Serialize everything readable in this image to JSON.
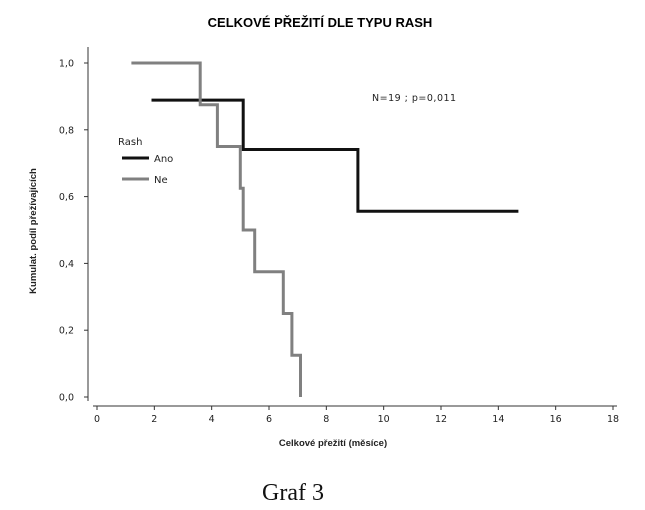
{
  "chart_data": {
    "type": "line",
    "step": true,
    "title": "CELKOVÉ PŘEŽITÍ DLE TYPU RASH",
    "xlabel": "Celkové přežití (měsíce)",
    "ylabel": "Kumulat. podíl přežívajících",
    "xlim": [
      0,
      18
    ],
    "ylim": [
      0,
      1
    ],
    "x_ticks": [
      0,
      2,
      4,
      6,
      8,
      10,
      12,
      14,
      16,
      18
    ],
    "y_ticks": [
      0.0,
      0.2,
      0.4,
      0.6,
      0.8,
      1.0
    ],
    "y_tick_labels": [
      "0,0",
      "0,2",
      "0,4",
      "0,6",
      "0,8",
      "1,0"
    ],
    "annotation": "N=19 ; p=0,011",
    "legend": {
      "title": "Rash",
      "placement": "left"
    },
    "series": [
      {
        "name": "Ano",
        "color": "#111111",
        "x": [
          1.9,
          5.1,
          5.1,
          9.1,
          9.1,
          14.7
        ],
        "y": [
          0.889,
          0.889,
          0.741,
          0.741,
          0.556,
          0.556
        ]
      },
      {
        "name": "Ne",
        "color": "#808080",
        "x": [
          1.2,
          3.6,
          3.6,
          4.2,
          4.2,
          5.0,
          5.0,
          5.1,
          5.1,
          5.5,
          5.5,
          6.5,
          6.5,
          6.8,
          6.8,
          7.1,
          7.1
        ],
        "y": [
          1.0,
          1.0,
          0.875,
          0.875,
          0.75,
          0.75,
          0.625,
          0.625,
          0.5,
          0.5,
          0.375,
          0.375,
          0.25,
          0.25,
          0.125,
          0.125,
          0.0
        ]
      }
    ]
  },
  "caption": "Graf 3"
}
